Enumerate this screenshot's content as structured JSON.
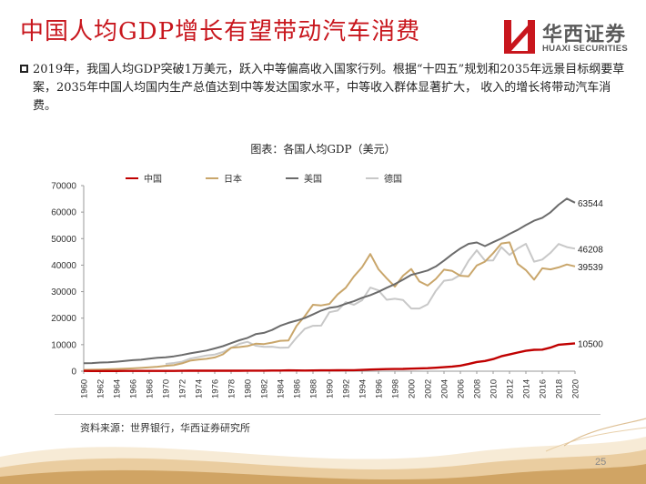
{
  "header": {
    "title": "中国人均GDP增长有望带动汽车消费",
    "logo_cn": "华西证券",
    "logo_en": "HUAXI SECURITIES"
  },
  "bullet": {
    "text": "2019年，我国人均GDP突破1万美元，跃入中等偏高收入国家行列。根据“十四五”规划和2035年远景目标纲要草案，2035年中国人均国内生产总值达到中等发达国家水平，中等收入群体显著扩大， 收入的增长将带动汽车消费。"
  },
  "footer": {
    "source": "资料来源：世界银行，华西证券研究所",
    "page_number": "25"
  },
  "colors": {
    "title_red": "#c8161d",
    "china": "#c00000",
    "japan": "#c9a66b",
    "usa": "#6b6b6b",
    "germany": "#c8c8c8"
  },
  "chart_data": {
    "type": "line",
    "title": "图表：各国人均GDP（美元）",
    "x": [
      1960,
      1961,
      1962,
      1963,
      1964,
      1965,
      1966,
      1967,
      1968,
      1969,
      1970,
      1971,
      1972,
      1973,
      1974,
      1975,
      1976,
      1977,
      1978,
      1979,
      1980,
      1981,
      1982,
      1983,
      1984,
      1985,
      1986,
      1987,
      1988,
      1989,
      1990,
      1991,
      1992,
      1993,
      1994,
      1995,
      1996,
      1997,
      1998,
      1999,
      2000,
      2001,
      2002,
      2003,
      2004,
      2005,
      2006,
      2007,
      2008,
      2009,
      2010,
      2011,
      2012,
      2013,
      2014,
      2015,
      2016,
      2017,
      2018,
      2019,
      2020
    ],
    "xticks": [
      "1960",
      "1962",
      "1964",
      "1966",
      "1968",
      "1970",
      "1972",
      "1974",
      "1976",
      "1978",
      "1980",
      "1982",
      "1984",
      "1986",
      "1988",
      "1990",
      "1992",
      "1994",
      "1996",
      "1998",
      "2000",
      "2002",
      "2004",
      "2006",
      "2008",
      "2010",
      "2012",
      "2014",
      "2016",
      "2018",
      "2020"
    ],
    "ylim": [
      0,
      70000
    ],
    "yticks": [
      "0",
      "10000",
      "20000",
      "30000",
      "40000",
      "50000",
      "60000",
      "70000"
    ],
    "grid": false,
    "legend": "top",
    "series": [
      {
        "name": "中国",
        "values": [
          90,
          76,
          70,
          74,
          85,
          98,
          104,
          97,
          91,
          100,
          113,
          119,
          132,
          157,
          160,
          178,
          165,
          185,
          156,
          184,
          195,
          197,
          203,
          225,
          251,
          294,
          282,
          251,
          283,
          310,
          318,
          333,
          366,
          377,
          473,
          610,
          709,
          782,
          829,
          873,
          959,
          1053,
          1149,
          1289,
          1509,
          1753,
          2099,
          2694,
          3468,
          3832,
          4550,
          5618,
          6317,
          7051,
          7679,
          8067,
          8148,
          8879,
          9977,
          10217,
          10500
        ],
        "end_label": "10500"
      },
      {
        "name": "日本",
        "values": [
          479,
          564,
          633,
          718,
          836,
          919,
          1058,
          1228,
          1450,
          1669,
          2037,
          2272,
          2967,
          3997,
          4354,
          4659,
          5197,
          6335,
          8821,
          9105,
          9463,
          10361,
          10214,
          10787,
          11465,
          11577,
          17112,
          20745,
          25059,
          24813,
          25359,
          28925,
          31465,
          35766,
          39269,
          44198,
          38437,
          35022,
          31903,
          36027,
          38532,
          33846,
          32289,
          34808,
          38299,
          37813,
          35991,
          35779,
          39876,
          41309,
          44508,
          48168,
          48603,
          40454,
          38109,
          34524,
          38794,
          38387,
          39159,
          40247,
          39539
        ],
        "end_label": "39539"
      },
      {
        "name": "美国",
        "values": [
          3007,
          3067,
          3244,
          3375,
          3574,
          3828,
          4146,
          4336,
          4696,
          5032,
          5234,
          5609,
          6094,
          6726,
          7226,
          7801,
          8592,
          9453,
          10565,
          11674,
          12575,
          13976,
          14434,
          15544,
          17121,
          18237,
          19071,
          20039,
          21417,
          22857,
          23889,
          24342,
          25419,
          26387,
          27695,
          28691,
          29968,
          31459,
          32854,
          34515,
          36330,
          37134,
          37998,
          39490,
          41725,
          44123,
          46302,
          48050,
          48570,
          47195,
          48651,
          50066,
          51784,
          53291,
          55124,
          56763,
          57867,
          59915,
          62805,
          65095,
          63544
        ],
        "end_label": "63544"
      },
      {
        "name": "德国",
        "values": [
          null,
          null,
          null,
          null,
          null,
          null,
          null,
          null,
          null,
          null,
          2761,
          3101,
          3570,
          4730,
          5304,
          5949,
          6295,
          7222,
          8768,
          10282,
          11087,
          9594,
          9211,
          9236,
          8826,
          8937,
          12688,
          16002,
          17138,
          17176,
          22220,
          22849,
          26050,
          25052,
          26767,
          31524,
          30487,
          26937,
          27316,
          26829,
          23636,
          23629,
          25205,
          30310,
          34107,
          34520,
          36354,
          41641,
          45612,
          41732,
          41786,
          46810,
          43856,
          46299,
          48024,
          41323,
          42108,
          44653,
          47974,
          46795,
          46208
        ],
        "end_label": "46208"
      }
    ]
  }
}
